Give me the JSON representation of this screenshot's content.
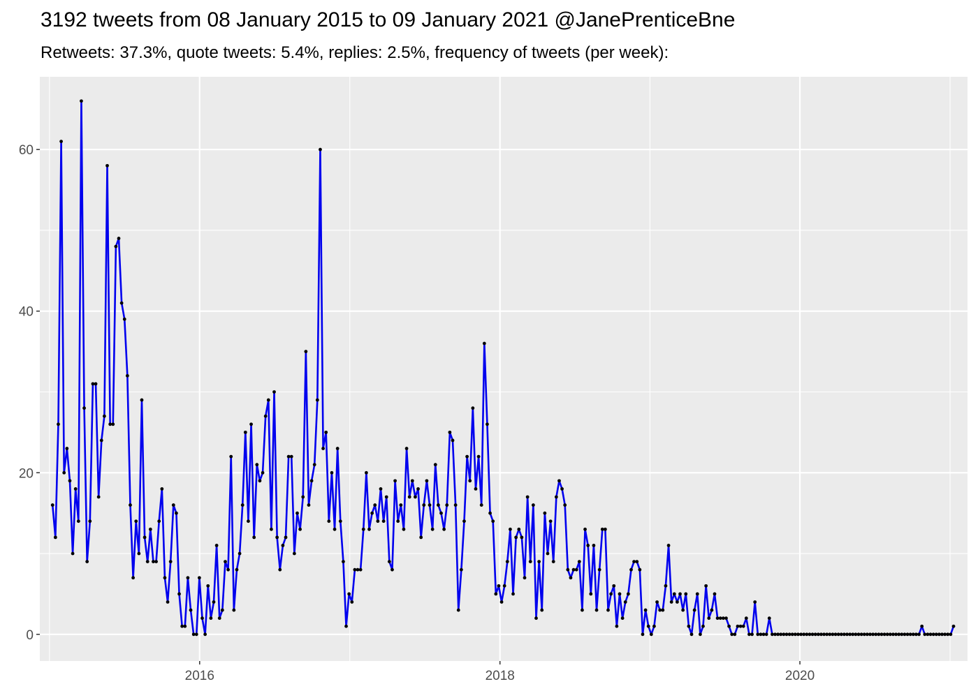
{
  "title": "3192 tweets from 08 January 2015 to 09 January 2021 @JanePrenticeBne",
  "subtitle": "Retweets: 37.3%, quote tweets: 5.4%, replies: 2.5%, frequency of tweets (per week):",
  "colors": {
    "panel": "#ebebeb",
    "grid": "#ffffff",
    "line": "#0000ee",
    "point": "#000000",
    "tick_text": "#4d4d4d"
  },
  "chart_data": {
    "type": "line",
    "title": "3192 tweets from 08 January 2015 to 09 January 2021 @JanePrenticeBne",
    "subtitle": "Retweets: 37.3%, quote tweets: 5.4%, replies: 2.5%, frequency of tweets (per week):",
    "xlabel": "",
    "ylabel": "",
    "x_start": "2015-01-08",
    "x_end": "2021-01-09",
    "x_interval": "weekly",
    "xlim": [
      "2014-12-08",
      "2021-02-12"
    ],
    "ylim": [
      -3.3,
      69
    ],
    "x_ticks": [
      {
        "date": "2016-01-01",
        "label": "2016"
      },
      {
        "date": "2018-01-01",
        "label": "2018"
      },
      {
        "date": "2020-01-01",
        "label": "2020"
      }
    ],
    "y_ticks": [
      0,
      20,
      40,
      60
    ],
    "grid": true,
    "legend": "none",
    "series": [
      {
        "values": [
          16,
          12,
          26,
          61,
          20,
          23,
          19,
          10,
          18,
          14,
          66,
          28,
          9,
          14,
          31,
          31,
          17,
          24,
          27,
          58,
          26,
          26,
          48,
          49,
          41,
          39,
          32,
          16,
          7,
          14,
          10,
          29,
          12,
          9,
          13,
          9,
          9,
          14,
          18,
          7,
          4,
          9,
          16,
          15,
          5,
          1,
          1,
          7,
          3,
          0,
          0,
          7,
          2,
          0,
          6,
          2,
          4,
          11,
          2,
          3,
          9,
          8,
          22,
          3,
          8,
          10,
          16,
          25,
          14,
          26,
          12,
          21,
          19,
          20,
          27,
          29,
          13,
          30,
          12,
          8,
          11,
          12,
          22,
          22,
          10,
          15,
          13,
          17,
          35,
          16,
          19,
          21,
          29,
          60,
          23,
          25,
          14,
          20,
          13,
          23,
          14,
          9,
          1,
          5,
          4,
          8,
          8,
          8,
          13,
          20,
          13,
          15,
          16,
          14,
          18,
          14,
          17,
          9,
          8,
          19,
          14,
          16,
          13,
          23,
          17,
          19,
          17,
          18,
          12,
          16,
          19,
          16,
          13,
          21,
          16,
          15,
          13,
          16,
          25,
          24,
          16,
          3,
          8,
          14,
          22,
          19,
          28,
          18,
          22,
          16,
          36,
          26,
          15,
          14,
          5,
          6,
          4,
          6,
          9,
          13,
          5,
          12,
          13,
          12,
          7,
          17,
          9,
          16,
          2,
          9,
          3,
          15,
          10,
          14,
          9,
          17,
          19,
          18,
          16,
          8,
          7,
          8,
          8,
          9,
          3,
          13,
          11,
          5,
          11,
          3,
          8,
          13,
          13,
          3,
          5,
          6,
          1,
          5,
          2,
          4,
          5,
          8,
          9,
          9,
          8,
          0,
          3,
          1,
          0,
          1,
          4,
          3,
          3,
          6,
          11,
          4,
          5,
          4,
          5,
          3,
          5,
          1,
          0,
          3,
          5,
          0,
          1,
          6,
          2,
          3,
          5,
          2,
          2,
          2,
          2,
          1,
          0,
          0,
          1,
          1,
          1,
          2,
          0,
          0,
          4,
          0,
          0,
          0,
          0,
          2,
          0,
          0,
          0,
          0,
          0,
          0,
          0,
          0,
          0,
          0,
          0,
          0,
          0,
          0,
          0,
          0,
          0,
          0,
          0,
          0,
          0,
          0,
          0,
          0,
          0,
          0,
          0,
          0,
          0,
          0,
          0,
          0,
          0,
          0,
          0,
          0,
          0,
          0,
          0,
          0,
          0,
          0,
          0,
          0,
          0,
          0,
          0,
          0,
          0,
          0,
          0,
          0,
          1,
          0,
          0,
          0,
          0,
          0,
          0,
          0,
          0,
          0,
          0,
          1
        ]
      }
    ]
  }
}
